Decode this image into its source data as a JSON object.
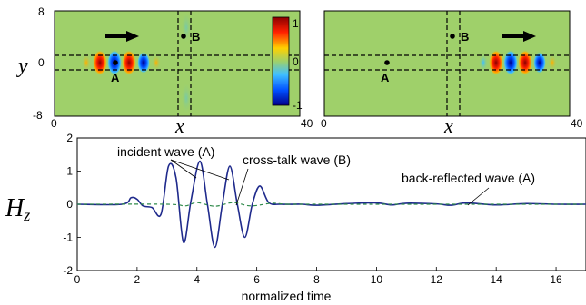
{
  "field_maps": {
    "y_label": "y",
    "x_label": "x",
    "y_ticks": [
      "8",
      "0",
      "-8"
    ],
    "x_ticks": [
      "0",
      "40"
    ],
    "colorbar": {
      "ticks": [
        "1",
        "0",
        "-1"
      ],
      "colors": [
        "#8b0000",
        "#ff2000",
        "#ffd000",
        "#9fd06a",
        "#40c0ff",
        "#0050ff",
        "#00008b"
      ]
    },
    "background_color": "#9fd06a",
    "left_panel": {
      "point_a": "A",
      "point_b": "B",
      "direction": "right-arrow"
    },
    "right_panel": {
      "point_a": "A",
      "point_b": "B",
      "direction": "right-arrow"
    }
  },
  "chart_data": {
    "type": "line",
    "ylabel": "H",
    "ylabel_subscript": "z",
    "xlabel": "normalized time",
    "xlim": [
      0,
      17
    ],
    "ylim": [
      -2,
      2
    ],
    "x_ticks": [
      "0",
      "2",
      "4",
      "6",
      "8",
      "10",
      "12",
      "14",
      "16"
    ],
    "y_ticks": [
      "2",
      "1",
      "0",
      "-1",
      "-2"
    ],
    "annotations": {
      "incident": "incident wave (A)",
      "crosstalk": "cross-talk wave (B)",
      "reflected": "back-reflected wave (A)"
    },
    "series": [
      {
        "style": "solid",
        "color": "#1f2a8c",
        "x": [
          0,
          1.5,
          1.8,
          2.0,
          2.2,
          2.5,
          2.8,
          3.05,
          3.3,
          3.55,
          3.8,
          4.1,
          4.35,
          4.6,
          4.85,
          5.1,
          5.35,
          5.6,
          5.85,
          6.1,
          6.4,
          6.8,
          7.5,
          8,
          9,
          10,
          10.5,
          11,
          12,
          12.5,
          13,
          14,
          15,
          16,
          17
        ],
        "y": [
          0,
          0,
          0.2,
          0.15,
          -0.05,
          -0.1,
          -0.3,
          1.15,
          0.8,
          -1.15,
          0.1,
          1.3,
          0.0,
          -1.3,
          0.0,
          1.15,
          0.0,
          -1.0,
          0.0,
          0.55,
          0.05,
          0.0,
          0.0,
          -0.03,
          0.02,
          0.04,
          -0.02,
          0.03,
          0.01,
          -0.03,
          0.04,
          -0.02,
          0.02,
          0.0,
          0.0
        ]
      },
      {
        "style": "dashed",
        "color": "#2f8a4a",
        "x": [
          0,
          3,
          3.6,
          4,
          4.6,
          5.2,
          5.8,
          6.5,
          7,
          8,
          17
        ],
        "y": [
          0,
          0,
          -0.05,
          0.05,
          -0.06,
          0.05,
          -0.05,
          0.03,
          0,
          0,
          0
        ]
      }
    ]
  }
}
